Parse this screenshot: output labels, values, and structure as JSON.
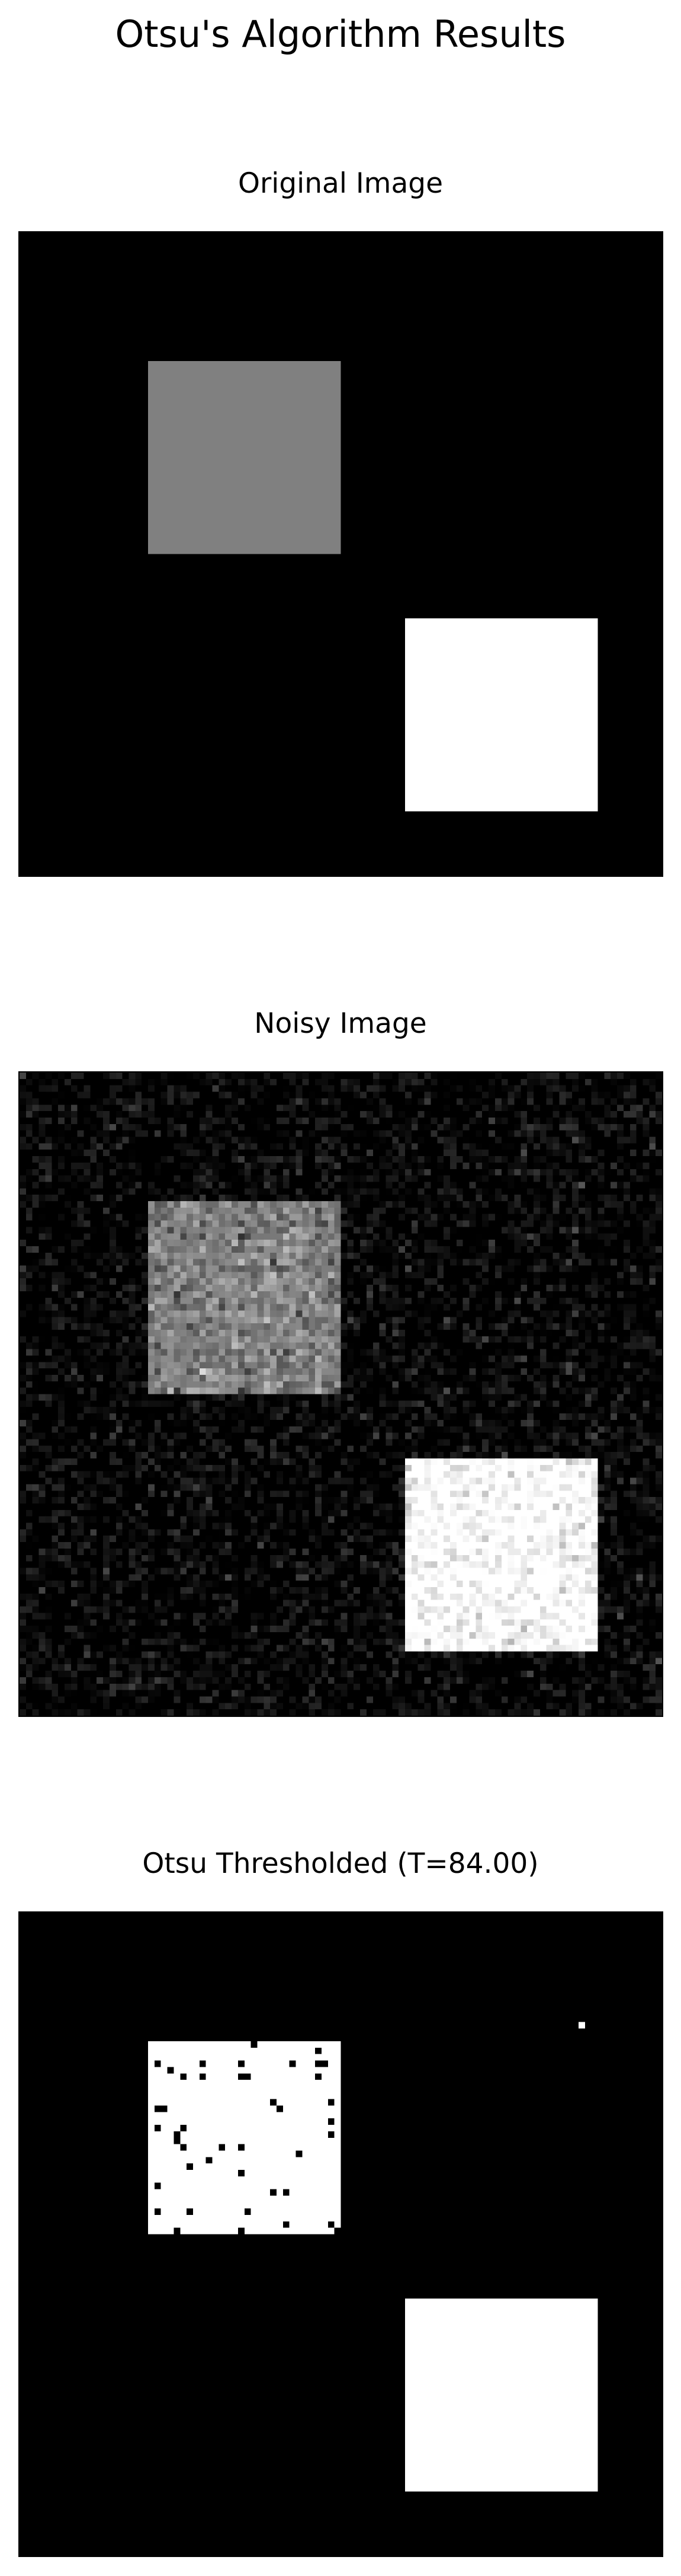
{
  "figure": {
    "title": "Otsu's Algorithm Results"
  },
  "panels": [
    {
      "title": "Original Image",
      "kind": "original"
    },
    {
      "title": "Noisy Image",
      "kind": "noisy"
    },
    {
      "title": "Otsu Thresholded (T=84.00)",
      "kind": "thresholded",
      "threshold": 84.0
    }
  ],
  "colors": {
    "background": "#000000",
    "gray_square": "#808080",
    "white_square": "#ffffff"
  }
}
